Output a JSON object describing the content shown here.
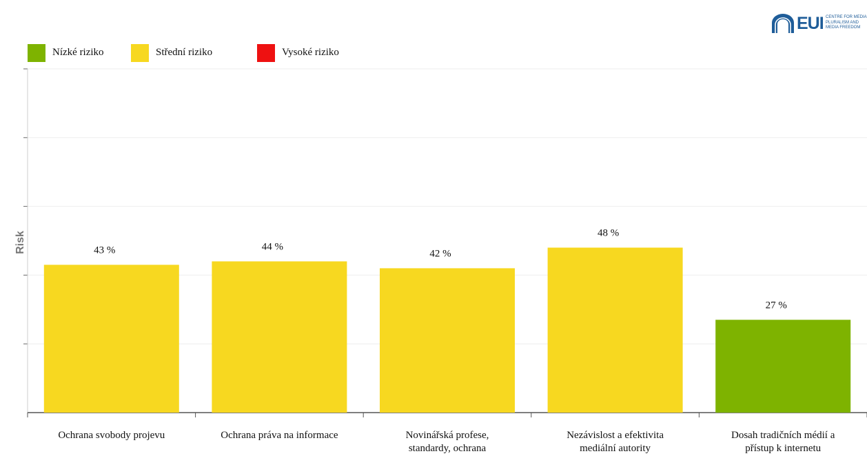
{
  "logo": {
    "text": "EUI",
    "lines": [
      "CENTRE FOR MEDIA",
      "PLURALISM AND",
      "MEDIA FREEDOM"
    ]
  },
  "legend": [
    {
      "label": "Nízké riziko",
      "color": "#7eb300"
    },
    {
      "label": "Střední riziko",
      "color": "#f7d820"
    },
    {
      "label": "Vysoké riziko",
      "color": "#ee1111"
    }
  ],
  "chart_data": {
    "type": "bar",
    "ylabel": "Risk",
    "ylim": [
      0,
      100
    ],
    "grid": true,
    "categories": [
      [
        "Ochrana svobody projevu"
      ],
      [
        "Ochrana práva na informace"
      ],
      [
        "Novinářská profese,",
        "standardy, ochrana"
      ],
      [
        "Nezávislost a efektivita",
        "mediální autority"
      ],
      [
        "Dosah tradičních médií a",
        "přístup k internetu"
      ]
    ],
    "values": [
      43,
      44,
      42,
      48,
      27
    ],
    "value_labels": [
      "43 %",
      "44 %",
      "42 %",
      "48 %",
      "27 %"
    ],
    "colors": [
      "#f7d820",
      "#f7d820",
      "#f7d820",
      "#f7d820",
      "#7eb300"
    ]
  }
}
